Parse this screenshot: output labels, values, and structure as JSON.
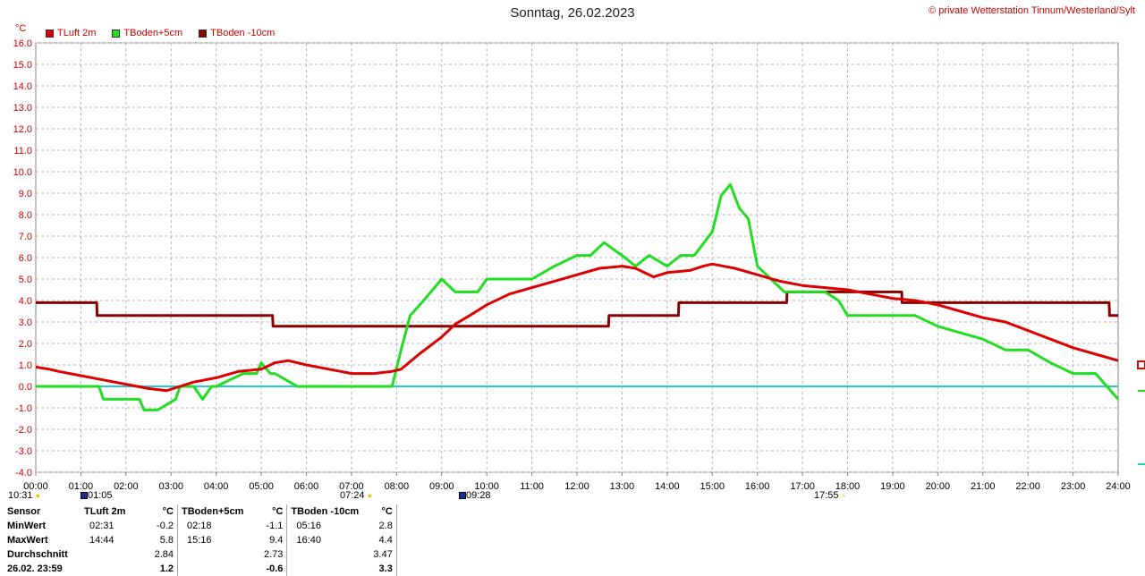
{
  "header": {
    "title": "Sonntag, 26.02.2023",
    "copyright": "© private Wetterstation Tinnum/Westerland/Sylt",
    "unit": "°C"
  },
  "legend": [
    {
      "label": "TLuft 2m",
      "color": "#dd0000"
    },
    {
      "label": "TBoden+5cm",
      "color": "#22dd22"
    },
    {
      "label": "TBoden -10cm",
      "color": "#880000"
    }
  ],
  "astro": {
    "sun_left": "10:31",
    "moon_rise": "01:05",
    "sunrise": "07:24",
    "moon_set": "09:28",
    "sunset": "17:55"
  },
  "stats": {
    "headers": [
      "Sensor",
      "TLuft 2m",
      "°C",
      "TBoden+5cm",
      "°C",
      "TBoden -10cm",
      "°C"
    ],
    "rows": [
      {
        "label": "MinWert",
        "t1": "02:31",
        "v1": "-0.2",
        "t2": "02:18",
        "v2": "-1.1",
        "t3": "05:16",
        "v3": "2.8"
      },
      {
        "label": "MaxWert",
        "t1": "14:44",
        "v1": "5.8",
        "t2": "15:16",
        "v2": "9.4",
        "t3": "16:40",
        "v3": "4.4"
      },
      {
        "label": "Durchschnitt",
        "t1": "",
        "v1": "2.84",
        "t2": "",
        "v2": "2.73",
        "t3": "",
        "v3": "3.47"
      },
      {
        "label": "26.02. 23:59",
        "t1": "",
        "v1": "1.2",
        "t2": "",
        "v2": "-0.6",
        "t3": "",
        "v3": "3.3"
      }
    ]
  },
  "chart_data": {
    "type": "line",
    "title": "Sonntag, 26.02.2023",
    "ylabel": "°C",
    "xlabel": "",
    "ylim": [
      -4.0,
      16.0
    ],
    "xlim": [
      0,
      24
    ],
    "grid": true,
    "legend_position": "top-left",
    "x_ticks": [
      "00:00",
      "01:00",
      "02:00",
      "03:00",
      "04:00",
      "05:00",
      "06:00",
      "07:00",
      "08:00",
      "09:00",
      "10:00",
      "11:00",
      "12:00",
      "13:00",
      "14:00",
      "15:00",
      "16:00",
      "17:00",
      "18:00",
      "19:00",
      "20:00",
      "21:00",
      "22:00",
      "23:00",
      "24:00"
    ],
    "y_ticks": [
      "16.0",
      "15.0",
      "14.0",
      "13.0",
      "12.0",
      "11.0",
      "10.0",
      "9.0",
      "8.0",
      "7.0",
      "6.0",
      "5.0",
      "4.0",
      "3.0",
      "2.0",
      "1.0",
      "0.0",
      "-1.0",
      "-2.0",
      "-3.0",
      "-4.0"
    ],
    "reference_line": {
      "y": 0.0,
      "color": "#22cccc"
    },
    "series": [
      {
        "name": "TLuft 2m",
        "color": "#dd0000",
        "x": [
          0,
          0.3,
          0.5,
          1,
          1.5,
          2,
          2.5,
          2.9,
          3.2,
          3.5,
          4,
          4.5,
          5,
          5.3,
          5.6,
          6,
          6.5,
          7,
          7.5,
          7.9,
          8.1,
          8.5,
          9,
          9.3,
          9.7,
          10,
          10.5,
          11,
          11.5,
          12,
          12.5,
          13,
          13.3,
          13.7,
          14,
          14.5,
          14.8,
          15,
          15.5,
          16,
          16.5,
          17,
          17.5,
          18,
          18.5,
          19,
          19.5,
          20,
          20.5,
          21,
          21.5,
          22,
          22.5,
          23,
          23.5,
          24
        ],
        "y": [
          0.9,
          0.8,
          0.7,
          0.5,
          0.3,
          0.1,
          -0.1,
          -0.2,
          0.0,
          0.2,
          0.4,
          0.7,
          0.8,
          1.1,
          1.2,
          1.0,
          0.8,
          0.6,
          0.6,
          0.7,
          0.8,
          1.5,
          2.3,
          2.9,
          3.4,
          3.8,
          4.3,
          4.6,
          4.9,
          5.2,
          5.5,
          5.6,
          5.5,
          5.1,
          5.3,
          5.4,
          5.6,
          5.7,
          5.5,
          5.2,
          4.9,
          4.7,
          4.6,
          4.5,
          4.3,
          4.1,
          4.0,
          3.8,
          3.5,
          3.2,
          3.0,
          2.6,
          2.2,
          1.8,
          1.5,
          1.2
        ]
      },
      {
        "name": "TBoden+5cm",
        "color": "#22dd22",
        "x": [
          0,
          1.4,
          1.5,
          2.3,
          2.4,
          2.7,
          3.1,
          3.2,
          3.5,
          3.7,
          3.9,
          4,
          4.6,
          4.9,
          5,
          5.2,
          5.3,
          5.8,
          7,
          7.9,
          8.1,
          8.3,
          8.6,
          9,
          9.3,
          9.8,
          10,
          10.5,
          11,
          11.5,
          12,
          12.3,
          12.6,
          13,
          13.3,
          13.6,
          14,
          14.3,
          14.6,
          15,
          15.2,
          15.4,
          15.6,
          15.8,
          16,
          16.3,
          16.6,
          17,
          17.5,
          17.8,
          18,
          19,
          19.5,
          20,
          21,
          21.5,
          22,
          22.5,
          23,
          23.5,
          24
        ],
        "y": [
          0.0,
          0.0,
          -0.6,
          -0.6,
          -1.1,
          -1.1,
          -0.6,
          0.0,
          0.0,
          -0.6,
          0.0,
          0.0,
          0.6,
          0.6,
          1.1,
          0.6,
          0.6,
          0.0,
          0.0,
          0.0,
          1.7,
          3.3,
          4.0,
          5.0,
          4.4,
          4.4,
          5.0,
          5.0,
          5.0,
          5.6,
          6.1,
          6.1,
          6.7,
          6.1,
          5.6,
          6.1,
          5.6,
          6.1,
          6.1,
          7.2,
          8.9,
          9.4,
          8.3,
          7.8,
          5.6,
          5.0,
          4.4,
          4.4,
          4.4,
          4.0,
          3.3,
          3.3,
          3.3,
          2.8,
          2.2,
          1.7,
          1.7,
          1.1,
          0.6,
          0.6,
          -0.6
        ]
      },
      {
        "name": "TBoden -10cm",
        "color": "#880000",
        "x": [
          0,
          1.35,
          1.36,
          5.25,
          5.26,
          12.7,
          12.71,
          14.25,
          14.26,
          16.65,
          16.66,
          19.2,
          19.21,
          23.8,
          23.81,
          24
        ],
        "y": [
          3.9,
          3.9,
          3.3,
          3.3,
          2.8,
          2.8,
          3.3,
          3.3,
          3.9,
          3.9,
          4.4,
          4.4,
          3.9,
          3.9,
          3.3,
          3.3
        ]
      }
    ]
  }
}
